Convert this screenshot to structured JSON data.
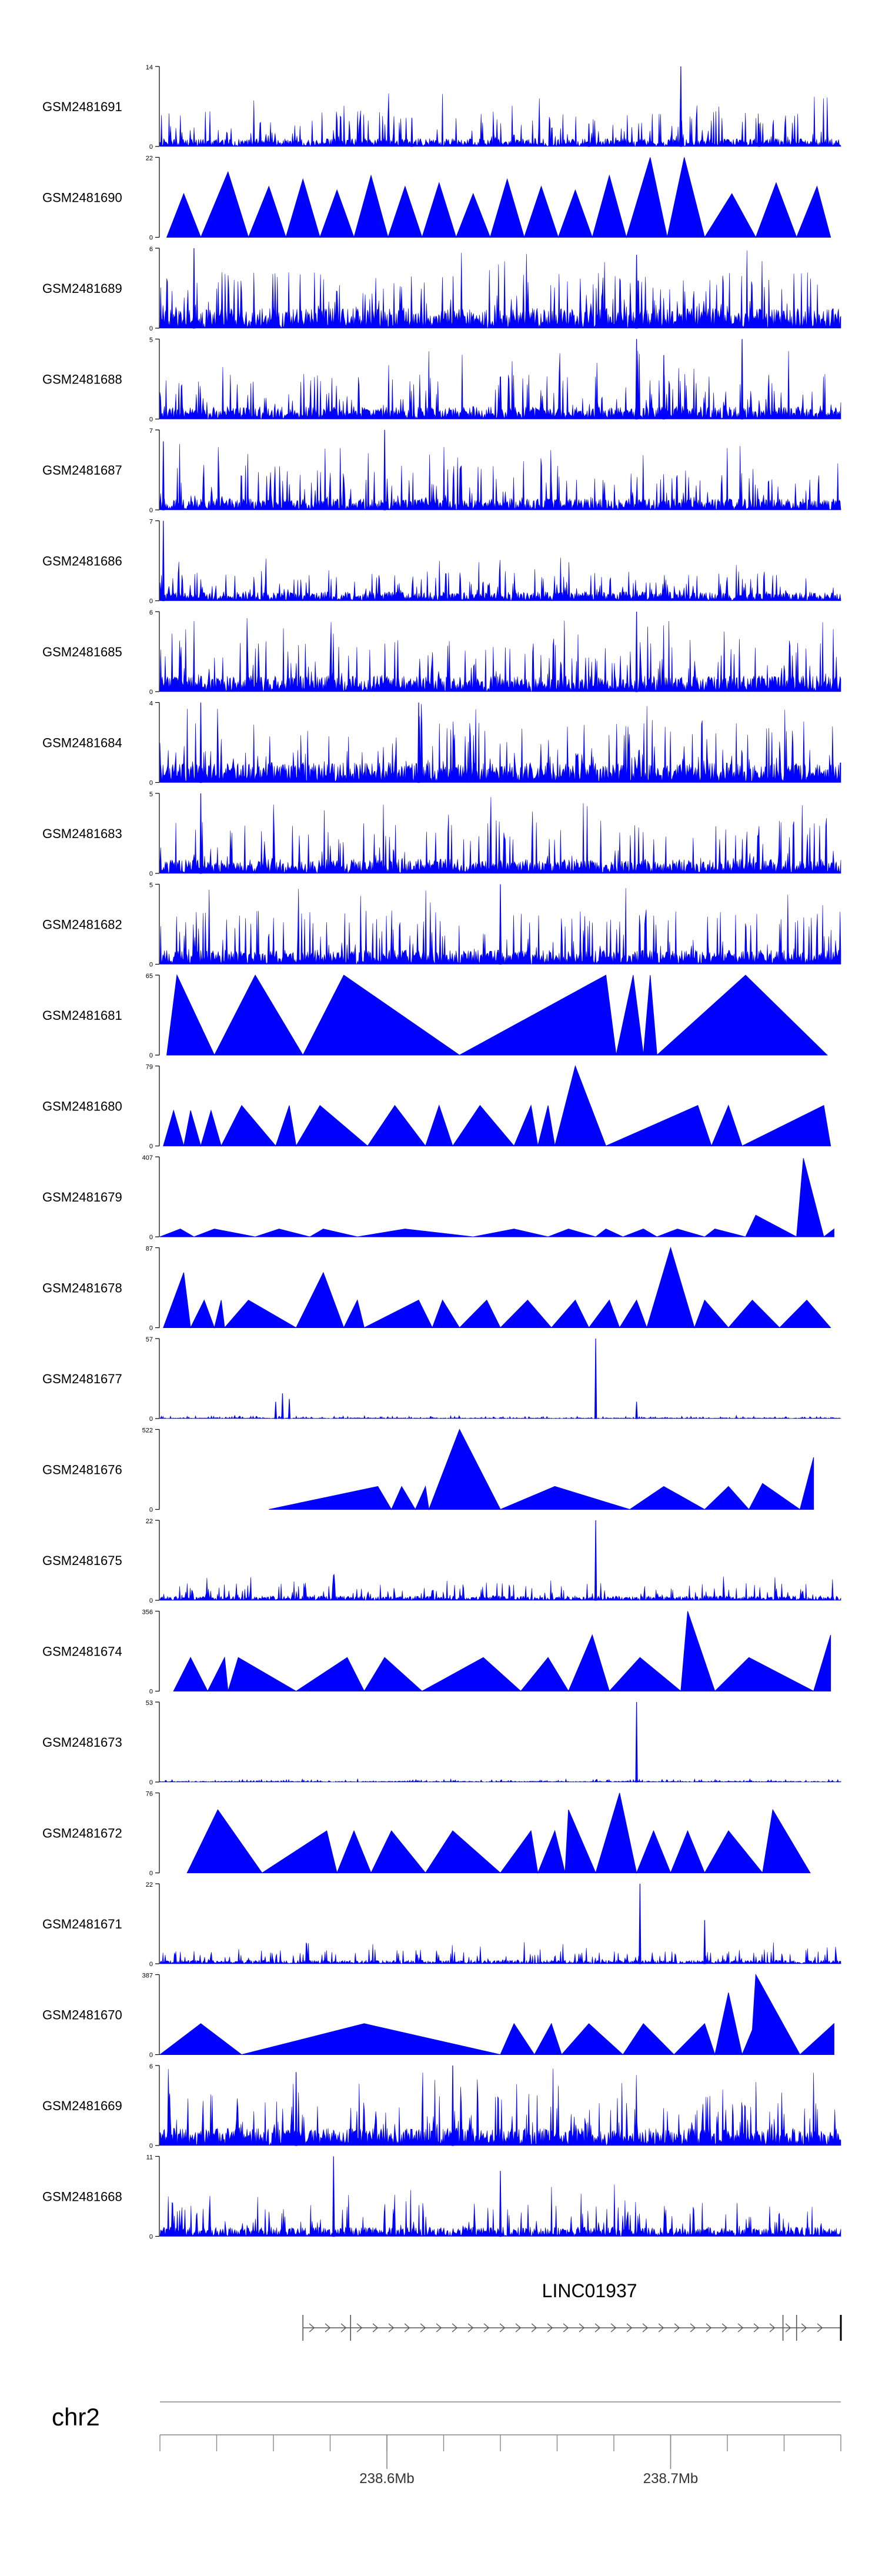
{
  "chart_data": {
    "type": "area",
    "title": "",
    "track_style": {
      "fill_color": "#0000ff",
      "axis_color": "#000000",
      "text_color": "#000000"
    },
    "tracks": [
      {
        "name": "GSM2481691",
        "ymin": 0,
        "ymax": 14,
        "kind": "dense",
        "seed": 11,
        "base": 1.4,
        "spike": 8,
        "peaks": [
          [
            0.765,
            14
          ],
          [
            0.37,
            5
          ],
          [
            0.88,
            4
          ],
          [
            0.63,
            4
          ]
        ]
      },
      {
        "name": "GSM2481690",
        "ymin": 0,
        "ymax": 22,
        "kind": "triangles",
        "seed": 12,
        "x": [
          0.01,
          0.035,
          0.06,
          0.1,
          0.13,
          0.16,
          0.185,
          0.21,
          0.235,
          0.26,
          0.285,
          0.31,
          0.335,
          0.36,
          0.385,
          0.41,
          0.435,
          0.46,
          0.485,
          0.51,
          0.535,
          0.56,
          0.585,
          0.61,
          0.635,
          0.66,
          0.685,
          0.72,
          0.745,
          0.77,
          0.8,
          0.84,
          0.875,
          0.905,
          0.935,
          0.965,
          0.985
        ],
        "y": [
          0,
          12,
          0,
          18,
          0,
          14,
          0,
          16,
          0,
          13,
          0,
          17,
          0,
          14,
          0,
          15,
          0,
          12,
          0,
          16,
          0,
          14,
          0,
          13,
          0,
          17,
          0,
          22,
          0,
          22,
          0,
          12,
          0,
          15,
          0,
          14,
          0
        ]
      },
      {
        "name": "GSM2481689",
        "ymin": 0,
        "ymax": 6,
        "kind": "dense",
        "seed": 13,
        "base": 1.5,
        "spike": 4.5,
        "peaks": [
          [
            0.05,
            6
          ],
          [
            0.7,
            5.5
          ]
        ]
      },
      {
        "name": "GSM2481688",
        "ymin": 0,
        "ymax": 5,
        "kind": "dense",
        "seed": 14,
        "base": 0.8,
        "spike": 3.5,
        "peaks": [
          [
            0.7,
            5
          ],
          [
            0.855,
            5
          ],
          [
            0.74,
            4
          ]
        ]
      },
      {
        "name": "GSM2481687",
        "ymin": 0,
        "ymax": 7,
        "kind": "dense",
        "seed": 15,
        "base": 1.0,
        "spike": 5,
        "peaks": [
          [
            0.33,
            7
          ],
          [
            0.005,
            6
          ]
        ]
      },
      {
        "name": "GSM2481686",
        "ymin": 0,
        "ymax": 7,
        "kind": "dense",
        "seed": 16,
        "base": 0.8,
        "spike": 3,
        "peaks": [
          [
            0.005,
            7
          ]
        ]
      },
      {
        "name": "GSM2481685",
        "ymin": 0,
        "ymax": 6,
        "kind": "dense",
        "seed": 17,
        "base": 1.2,
        "spike": 4.5,
        "peaks": [
          [
            0.7,
            6
          ]
        ]
      },
      {
        "name": "GSM2481684",
        "ymin": 0,
        "ymax": 4,
        "kind": "dense",
        "seed": 18,
        "base": 1.0,
        "spike": 3.5,
        "peaks": [
          [
            0.06,
            4
          ],
          [
            0.38,
            4
          ]
        ]
      },
      {
        "name": "GSM2481683",
        "ymin": 0,
        "ymax": 5,
        "kind": "dense",
        "seed": 19,
        "base": 0.9,
        "spike": 4,
        "peaks": [
          [
            0.06,
            5
          ]
        ]
      },
      {
        "name": "GSM2481682",
        "ymin": 0,
        "ymax": 5,
        "kind": "dense",
        "seed": 20,
        "base": 0.9,
        "spike": 4.2,
        "peaks": [
          [
            0.5,
            5
          ]
        ]
      },
      {
        "name": "GSM2481681",
        "ymin": 0,
        "ymax": 65,
        "kind": "triangles",
        "seed": 21,
        "x": [
          0.01,
          0.025,
          0.08,
          0.14,
          0.21,
          0.27,
          0.44,
          0.655,
          0.67,
          0.695,
          0.71,
          0.72,
          0.73,
          0.86,
          0.98
        ],
        "y": [
          0,
          65,
          0,
          65,
          0,
          65,
          0,
          65,
          0,
          65,
          0,
          65,
          0,
          65,
          0
        ]
      },
      {
        "name": "GSM2481680",
        "ymin": 0,
        "ymax": 79,
        "kind": "triangles",
        "seed": 22,
        "x": [
          0.005,
          0.02,
          0.035,
          0.045,
          0.06,
          0.075,
          0.09,
          0.12,
          0.17,
          0.19,
          0.2,
          0.235,
          0.305,
          0.345,
          0.39,
          0.41,
          0.43,
          0.47,
          0.52,
          0.545,
          0.555,
          0.57,
          0.58,
          0.61,
          0.655,
          0.79,
          0.81,
          0.835,
          0.855,
          0.975,
          0.985
        ],
        "y": [
          0,
          35,
          0,
          35,
          0,
          35,
          0,
          40,
          0,
          40,
          0,
          40,
          0,
          40,
          0,
          40,
          0,
          40,
          0,
          40,
          0,
          40,
          0,
          79,
          0,
          40,
          0,
          40,
          0,
          40,
          0
        ]
      },
      {
        "name": "GSM2481679",
        "ymin": 0,
        "ymax": 407,
        "kind": "triangles",
        "seed": 23,
        "x": [
          0.0,
          0.03,
          0.05,
          0.08,
          0.14,
          0.175,
          0.22,
          0.24,
          0.29,
          0.36,
          0.46,
          0.52,
          0.57,
          0.6,
          0.64,
          0.655,
          0.68,
          0.71,
          0.73,
          0.76,
          0.8,
          0.815,
          0.86,
          0.875,
          0.935,
          0.945,
          0.975,
          0.99
        ],
        "y": [
          0,
          40,
          0,
          40,
          0,
          40,
          0,
          40,
          0,
          40,
          0,
          40,
          0,
          40,
          0,
          40,
          0,
          40,
          0,
          40,
          0,
          40,
          0,
          110,
          0,
          400,
          0,
          40
        ]
      },
      {
        "name": "GSM2481678",
        "ymin": 0,
        "ymax": 87,
        "kind": "triangles",
        "seed": 24,
        "x": [
          0.005,
          0.035,
          0.045,
          0.065,
          0.08,
          0.09,
          0.095,
          0.13,
          0.2,
          0.24,
          0.27,
          0.29,
          0.3,
          0.38,
          0.4,
          0.415,
          0.44,
          0.48,
          0.5,
          0.54,
          0.575,
          0.61,
          0.63,
          0.66,
          0.675,
          0.7,
          0.715,
          0.75,
          0.785,
          0.8,
          0.835,
          0.87,
          0.91,
          0.95,
          0.985
        ],
        "y": [
          0,
          60,
          0,
          30,
          0,
          30,
          0,
          30,
          0,
          60,
          0,
          30,
          0,
          30,
          0,
          30,
          0,
          30,
          0,
          30,
          0,
          30,
          0,
          30,
          0,
          30,
          0,
          87,
          0,
          30,
          0,
          30,
          0,
          30,
          0
        ]
      },
      {
        "name": "GSM2481677",
        "ymin": 0,
        "ymax": 57,
        "kind": "dense",
        "seed": 25,
        "base": 0.6,
        "spike": 2,
        "peaks": [
          [
            0.64,
            57
          ],
          [
            0.7,
            12
          ],
          [
            0.17,
            12
          ],
          [
            0.18,
            18
          ],
          [
            0.19,
            14
          ]
        ]
      },
      {
        "name": "GSM2481676",
        "ymin": 0,
        "ymax": 522,
        "kind": "triangles",
        "seed": 26,
        "x": [
          0.16,
          0.32,
          0.34,
          0.355,
          0.375,
          0.39,
          0.395,
          0.44,
          0.5,
          0.58,
          0.69,
          0.74,
          0.8,
          0.835,
          0.865,
          0.885,
          0.94,
          0.96
        ],
        "y": [
          0,
          150,
          0,
          150,
          0,
          150,
          0,
          522,
          0,
          150,
          0,
          150,
          0,
          150,
          0,
          170,
          0,
          340
        ]
      },
      {
        "name": "GSM2481675",
        "ymin": 0,
        "ymax": 22,
        "kind": "dense",
        "seed": 27,
        "base": 1.2,
        "spike": 6,
        "peaks": [
          [
            0.64,
            22
          ]
        ]
      },
      {
        "name": "GSM2481674",
        "ymin": 0,
        "ymax": 356,
        "kind": "triangles",
        "seed": 28,
        "x": [
          0.02,
          0.045,
          0.07,
          0.095,
          0.1,
          0.115,
          0.2,
          0.275,
          0.3,
          0.33,
          0.385,
          0.475,
          0.53,
          0.57,
          0.6,
          0.635,
          0.66,
          0.705,
          0.765,
          0.775,
          0.815,
          0.865,
          0.96,
          0.985
        ],
        "y": [
          0,
          150,
          0,
          150,
          0,
          150,
          0,
          150,
          0,
          150,
          0,
          150,
          0,
          150,
          0,
          250,
          0,
          150,
          0,
          356,
          0,
          150,
          0,
          250
        ]
      },
      {
        "name": "GSM2481673",
        "ymin": 0,
        "ymax": 53,
        "kind": "dense",
        "seed": 29,
        "base": 0.6,
        "spike": 2,
        "peaks": [
          [
            0.7,
            53
          ]
        ]
      },
      {
        "name": "GSM2481672",
        "ymin": 0,
        "ymax": 76,
        "kind": "triangles",
        "seed": 30,
        "x": [
          0.04,
          0.085,
          0.15,
          0.245,
          0.26,
          0.285,
          0.31,
          0.34,
          0.39,
          0.43,
          0.5,
          0.545,
          0.555,
          0.58,
          0.595,
          0.6,
          0.64,
          0.675,
          0.7,
          0.725,
          0.75,
          0.775,
          0.8,
          0.835,
          0.885,
          0.9,
          0.955
        ],
        "y": [
          0,
          60,
          0,
          40,
          0,
          40,
          0,
          40,
          0,
          40,
          0,
          40,
          0,
          40,
          0,
          60,
          0,
          76,
          0,
          40,
          0,
          40,
          0,
          40,
          0,
          60,
          0
        ]
      },
      {
        "name": "GSM2481671",
        "ymin": 0,
        "ymax": 22,
        "kind": "dense",
        "seed": 31,
        "base": 1.0,
        "spike": 5,
        "peaks": [
          [
            0.705,
            22
          ],
          [
            0.8,
            12
          ]
        ]
      },
      {
        "name": "GSM2481670",
        "ymin": 0,
        "ymax": 387,
        "kind": "triangles",
        "seed": 32,
        "x": [
          0.0,
          0.06,
          0.12,
          0.3,
          0.5,
          0.52,
          0.55,
          0.575,
          0.59,
          0.63,
          0.68,
          0.71,
          0.755,
          0.8,
          0.815,
          0.835,
          0.855,
          0.87,
          0.875,
          0.94,
          0.99
        ],
        "y": [
          0,
          150,
          0,
          150,
          0,
          150,
          0,
          150,
          0,
          150,
          0,
          150,
          0,
          150,
          0,
          300,
          0,
          120,
          387,
          0,
          150
        ]
      },
      {
        "name": "GSM2481669",
        "ymin": 0,
        "ymax": 6,
        "kind": "dense",
        "seed": 33,
        "base": 1.3,
        "spike": 4.5,
        "peaks": [
          [
            0.2,
            5.5
          ],
          [
            0.43,
            6
          ]
        ]
      },
      {
        "name": "GSM2481668",
        "ymin": 0,
        "ymax": 11,
        "kind": "dense",
        "seed": 34,
        "base": 1.3,
        "spike": 6,
        "peaks": [
          [
            0.255,
            11
          ],
          [
            0.5,
            9
          ]
        ]
      }
    ],
    "gene": {
      "name": "LINC01937",
      "start_frac": 0.21,
      "end_frac": 1.0,
      "marks": [
        0.21,
        0.28,
        0.915,
        0.935,
        1.0
      ]
    },
    "chromosome": {
      "name": "chr2",
      "xlim_mb": [
        238.52,
        238.76
      ],
      "ticks_mb": [
        238.52,
        238.54,
        238.56,
        238.58,
        238.6,
        238.62,
        238.64,
        238.66,
        238.68,
        238.7,
        238.72,
        238.74,
        238.76
      ],
      "labeled_ticks": [
        {
          "mb": 238.6,
          "label": "238.6Mb"
        },
        {
          "mb": 238.7,
          "label": "238.7Mb"
        }
      ]
    }
  }
}
